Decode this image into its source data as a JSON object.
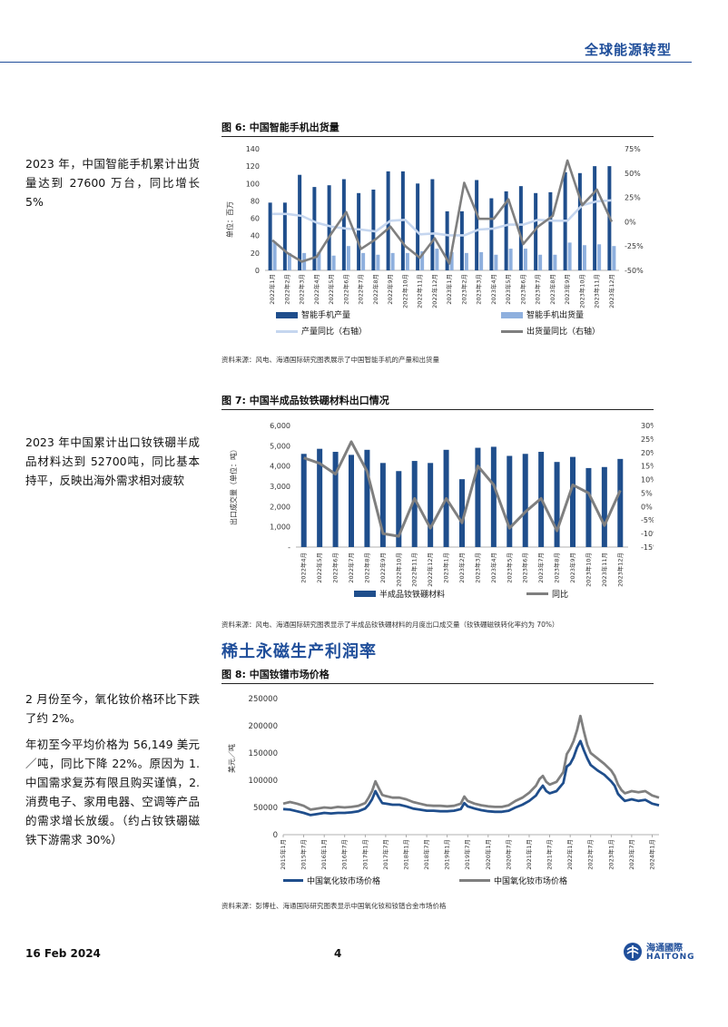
{
  "header": {
    "title": "全球能源转型"
  },
  "section_title": "稀土永磁生产利润率",
  "left_notes": {
    "note1": "2023 年，中国智能手机累计出货量达到 27600 万台，同比增长 5%",
    "note2": "2023 年中国累计出口钕铁硼半成品材料达到 52700吨，同比基本持平，反映出海外需求相对疲软",
    "note3a": "2 月份至今，氧化钕价格环比下跌了约 2%。",
    "note3b": "年初至今平均价格为 56,149 美元／吨，同比下降 22%。原因为 1.中国需求复苏有限且购买谨慎，2.消费电子、家用电器、空调等产品的需求增长放缓。（约占钕铁硼磁铁下游需求 30%）"
  },
  "figures": {
    "fig6": {
      "title": "图 6:  中国智能手机出货量",
      "source": "资料来源：风电、海通国际研究图表展示了中国智能手机的产量和出货量"
    },
    "fig7": {
      "title": "图 7:  中国半成品钕铁硼材料出口情况",
      "source": "资料来源：风电、海通国际研究图表显示了半成品钕铁硼材料的月度出口成交量（钕铁硼磁铁转化率约为 70%）"
    },
    "fig8": {
      "title": "图 8:  中国钕镨市场价格",
      "source": "资料来源：彭博社、海通国际研究图表显示中国氧化钕和钕镨合金市场价格"
    }
  },
  "footer": {
    "date": "16 Feb 2024",
    "page": "4",
    "logo_cn": "海通國際",
    "logo_en": "HAITONG"
  },
  "colors": {
    "dark_blue": "#1f4e8c",
    "light_blue": "#8fb0de",
    "pale_blue": "#c5d6ef",
    "gray": "#7f7f7f",
    "brand": "#1f4e9a"
  },
  "chart_data": [
    {
      "id": "fig6",
      "type": "bar",
      "categories": [
        "2022年1月",
        "2022年2月",
        "2022年3月",
        "2022年4月",
        "2022年5月",
        "2022年6月",
        "2022年7月",
        "2022年8月",
        "2022年9月",
        "2022年10月",
        "2022年11月",
        "2022年12月",
        "2023年1月",
        "2023年2月",
        "2023年3月",
        "2023年4月",
        "2023年5月",
        "2023年6月",
        "2023年7月",
        "2023年8月",
        "2023年9月",
        "2023年10月",
        "2023年11月",
        "2023年12月"
      ],
      "ylabel": "单位：百万",
      "y2label": "%",
      "ylim": [
        0,
        140
      ],
      "yticks": [
        0,
        20,
        40,
        60,
        80,
        100,
        120,
        140
      ],
      "y2lim": [
        -50,
        75
      ],
      "y2ticks": [
        "-50%",
        "-25%",
        "0%",
        "25%",
        "50%",
        "75%"
      ],
      "y2tick_values": [
        -50,
        -25,
        0,
        25,
        50,
        75
      ],
      "series": [
        {
          "name": "智能手机产量",
          "axis": "left",
          "kind": "bar",
          "color": "#1f4e8c",
          "values": [
            78,
            78,
            110,
            96,
            98,
            105,
            89,
            93,
            114,
            114,
            100,
            105,
            68,
            68,
            104,
            83,
            91,
            97,
            89,
            90,
            113,
            112,
            120,
            120
          ]
        },
        {
          "name": "智能手机出货量",
          "axis": "left",
          "kind": "bar",
          "color": "#8fb0de",
          "values": [
            33,
            20,
            20,
            21,
            17,
            28,
            20,
            18,
            20,
            20,
            22,
            25,
            21,
            20,
            21,
            18,
            25,
            25,
            18,
            18,
            32,
            29,
            30,
            28
          ]
        },
        {
          "name": "产量同比（右轴）",
          "axis": "right",
          "kind": "line",
          "color": "#c5d6ef",
          "values": [
            8,
            8,
            6,
            -1,
            -5,
            -7,
            -8,
            -10,
            1,
            2,
            -13,
            -12,
            -14,
            -14,
            -8,
            -7,
            -3,
            -3,
            2,
            1,
            1,
            17,
            21,
            22
          ]
        },
        {
          "name": "出货量同比（右轴）",
          "axis": "right",
          "kind": "line",
          "color": "#7f7f7f",
          "values": [
            -19,
            -32,
            -41,
            -36,
            -12,
            10,
            -28,
            -18,
            -5,
            -25,
            -37,
            -17,
            -43,
            40,
            3,
            3,
            23,
            -23,
            -5,
            6,
            63,
            17,
            33,
            0
          ]
        }
      ]
    },
    {
      "id": "fig7",
      "type": "bar",
      "categories": [
        "2022年4月",
        "2022年5月",
        "2022年6月",
        "2022年7月",
        "2022年8月",
        "2022年9月",
        "2022年10月",
        "2022年11月",
        "2022年12月",
        "2023年1月",
        "2023年2月",
        "2023年3月",
        "2023年4月",
        "2023年5月",
        "2023年6月",
        "2023年7月",
        "2023年8月",
        "2023年9月",
        "2023年10月",
        "2023年11月",
        "2023年12月"
      ],
      "ylabel": "出口成交量（单位：吨）",
      "y2label": "%",
      "ylim": [
        0,
        6000
      ],
      "yticks": [
        "-",
        "1,000",
        "2,000",
        "3,000",
        "4,000",
        "5,000",
        "6,000"
      ],
      "ytick_values": [
        0,
        1000,
        2000,
        3000,
        4000,
        5000,
        6000
      ],
      "y2lim": [
        -15,
        30
      ],
      "y2ticks": [
        "-15%",
        "-10%",
        "-5%",
        "0%",
        "5%",
        "10%",
        "15%",
        "20%",
        "25%",
        "30%"
      ],
      "y2tick_values": [
        -15,
        -10,
        -5,
        0,
        5,
        10,
        15,
        20,
        25,
        30
      ],
      "series": [
        {
          "name": "半成品钕铁硼材料",
          "axis": "left",
          "kind": "bar",
          "color": "#1f4e8c",
          "values": [
            4600,
            4850,
            4700,
            4550,
            4800,
            4150,
            3750,
            4250,
            4150,
            4800,
            3350,
            4900,
            4950,
            4500,
            4600,
            4700,
            4200,
            4450,
            3900,
            3950,
            4350
          ]
        },
        {
          "name": "同比",
          "axis": "right",
          "kind": "line",
          "color": "#7f7f7f",
          "values": [
            18,
            16,
            12,
            24,
            13,
            -10,
            -11,
            3,
            -8,
            3,
            -6,
            15,
            8,
            -8,
            -2,
            3,
            -9,
            8,
            5,
            -7,
            6
          ]
        }
      ]
    },
    {
      "id": "fig8",
      "type": "line",
      "ylabel": "美元／吨",
      "ylim": [
        0,
        250000
      ],
      "yticks": [
        "0",
        "50000",
        "100000",
        "150000",
        "200000",
        "250000"
      ],
      "ytick_values": [
        0,
        50000,
        100000,
        150000,
        200000,
        250000
      ],
      "x_tick_labels": [
        "2015年1月",
        "2015年7月",
        "2016年1月",
        "2016年7月",
        "2017年1月",
        "2017年7月",
        "2018年1月",
        "2018年7月",
        "2019年1月",
        "2019年7月",
        "2020年1月",
        "2020年7月",
        "2021年1月",
        "2021年7月",
        "2022年1月",
        "2022年7月",
        "2023年1月",
        "2023年7月",
        "2024年1月"
      ],
      "x_tick_months": [
        0,
        6,
        12,
        18,
        24,
        30,
        36,
        42,
        48,
        54,
        60,
        66,
        72,
        78,
        84,
        90,
        96,
        102,
        108
      ],
      "x_range_months": [
        0,
        110
      ],
      "series": [
        {
          "name": "中国氧化钕市场价格",
          "color": "#1f4e8c",
          "points": [
            [
              0,
              47000
            ],
            [
              2,
              46000
            ],
            [
              4,
              43000
            ],
            [
              6,
              40000
            ],
            [
              8,
              36000
            ],
            [
              10,
              38000
            ],
            [
              12,
              40000
            ],
            [
              14,
              39000
            ],
            [
              16,
              40000
            ],
            [
              18,
              40000
            ],
            [
              20,
              41000
            ],
            [
              22,
              43000
            ],
            [
              24,
              48000
            ],
            [
              25,
              55000
            ],
            [
              26,
              65000
            ],
            [
              27,
              80000
            ],
            [
              28,
              68000
            ],
            [
              29,
              58000
            ],
            [
              30,
              57000
            ],
            [
              32,
              55000
            ],
            [
              34,
              55000
            ],
            [
              36,
              52000
            ],
            [
              38,
              48000
            ],
            [
              40,
              46000
            ],
            [
              42,
              44000
            ],
            [
              44,
              44000
            ],
            [
              46,
              43000
            ],
            [
              48,
              43000
            ],
            [
              50,
              44000
            ],
            [
              52,
              47000
            ],
            [
              53,
              58000
            ],
            [
              54,
              52000
            ],
            [
              56,
              48000
            ],
            [
              58,
              45000
            ],
            [
              60,
              43000
            ],
            [
              62,
              42000
            ],
            [
              64,
              42000
            ],
            [
              66,
              44000
            ],
            [
              68,
              50000
            ],
            [
              70,
              55000
            ],
            [
              72,
              62000
            ],
            [
              74,
              72000
            ],
            [
              75,
              82000
            ],
            [
              76,
              90000
            ],
            [
              77,
              80000
            ],
            [
              78,
              76000
            ],
            [
              80,
              80000
            ],
            [
              82,
              95000
            ],
            [
              83,
              125000
            ],
            [
              84,
              130000
            ],
            [
              85,
              142000
            ],
            [
              86,
              160000
            ],
            [
              87,
              172000
            ],
            [
              88,
              155000
            ],
            [
              89,
              140000
            ],
            [
              90,
              128000
            ],
            [
              92,
              118000
            ],
            [
              94,
              110000
            ],
            [
              96,
              98000
            ],
            [
              97,
              90000
            ],
            [
              98,
              75000
            ],
            [
              99,
              68000
            ],
            [
              100,
              62000
            ],
            [
              102,
              65000
            ],
            [
              104,
              62000
            ],
            [
              106,
              64000
            ],
            [
              108,
              57000
            ],
            [
              110,
              54000
            ]
          ]
        },
        {
          "name": "中国氧化钕市场价格",
          "color": "#7f7f7f",
          "points": [
            [
              0,
              57000
            ],
            [
              2,
              60000
            ],
            [
              4,
              57000
            ],
            [
              6,
              53000
            ],
            [
              8,
              46000
            ],
            [
              10,
              48000
            ],
            [
              12,
              50000
            ],
            [
              14,
              49000
            ],
            [
              16,
              51000
            ],
            [
              18,
              50000
            ],
            [
              20,
              51000
            ],
            [
              22,
              53000
            ],
            [
              24,
              58000
            ],
            [
              25,
              68000
            ],
            [
              26,
              80000
            ],
            [
              27,
              98000
            ],
            [
              28,
              85000
            ],
            [
              29,
              73000
            ],
            [
              30,
              71000
            ],
            [
              32,
              68000
            ],
            [
              34,
              68000
            ],
            [
              36,
              65000
            ],
            [
              38,
              60000
            ],
            [
              40,
              57000
            ],
            [
              42,
              54000
            ],
            [
              44,
              53000
            ],
            [
              46,
              53000
            ],
            [
              48,
              52000
            ],
            [
              50,
              53000
            ],
            [
              52,
              57000
            ],
            [
              53,
              70000
            ],
            [
              54,
              62000
            ],
            [
              56,
              57000
            ],
            [
              58,
              54000
            ],
            [
              60,
              52000
            ],
            [
              62,
              51000
            ],
            [
              64,
              51000
            ],
            [
              66,
              54000
            ],
            [
              68,
              62000
            ],
            [
              70,
              68000
            ],
            [
              72,
              77000
            ],
            [
              74,
              90000
            ],
            [
              75,
              102000
            ],
            [
              76,
              108000
            ],
            [
              77,
              97000
            ],
            [
              78,
              92000
            ],
            [
              80,
              97000
            ],
            [
              82,
              115000
            ],
            [
              83,
              148000
            ],
            [
              84,
              158000
            ],
            [
              85,
              172000
            ],
            [
              86,
              192000
            ],
            [
              87,
              218000
            ],
            [
              88,
              190000
            ],
            [
              89,
              165000
            ],
            [
              90,
              150000
            ],
            [
              92,
              140000
            ],
            [
              94,
              130000
            ],
            [
              96,
              118000
            ],
            [
              97,
              108000
            ],
            [
              98,
              92000
            ],
            [
              99,
              82000
            ],
            [
              100,
              76000
            ],
            [
              102,
              80000
            ],
            [
              104,
              78000
            ],
            [
              106,
              80000
            ],
            [
              108,
              72000
            ],
            [
              110,
              68000
            ]
          ]
        }
      ]
    }
  ]
}
